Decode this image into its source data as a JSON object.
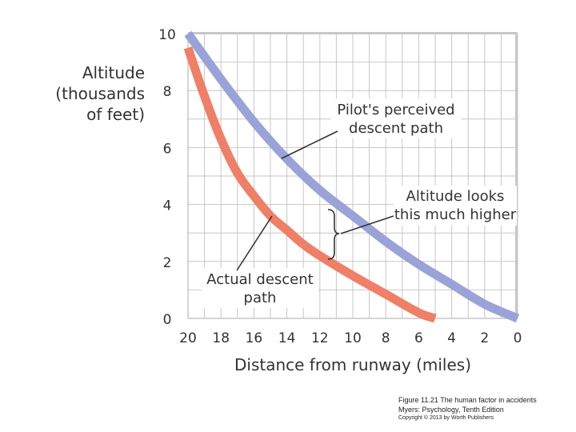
{
  "chart_data": {
    "type": "line",
    "title": "",
    "xlabel": "Distance from runway (miles)",
    "ylabel": [
      "Altitude",
      "(thousands",
      "of feet)"
    ],
    "xlim": [
      20,
      0
    ],
    "ylim": [
      0,
      10
    ],
    "x_ticks": [
      "20",
      "18",
      "16",
      "14",
      "12",
      "10",
      "8",
      "6",
      "4",
      "2",
      "0"
    ],
    "y_ticks": [
      "10",
      "8",
      "6",
      "4",
      "2",
      "0"
    ],
    "grid": true,
    "series": [
      {
        "name": "Pilot's perceived descent path",
        "color": "#9aa3d8",
        "x": [
          20,
          18,
          16,
          14,
          12,
          10,
          8,
          6,
          4,
          2,
          0
        ],
        "y": [
          10,
          8.4,
          6.9,
          5.6,
          4.5,
          3.6,
          2.7,
          1.9,
          1.2,
          0.5,
          0
        ]
      },
      {
        "name": "Actual descent path",
        "color": "#f07f67",
        "x": [
          20,
          19,
          18,
          17,
          16,
          15,
          14,
          13,
          12,
          10,
          8,
          6,
          5
        ],
        "y": [
          9.5,
          7.8,
          6.3,
          5.1,
          4.3,
          3.6,
          3.1,
          2.6,
          2.2,
          1.5,
          0.85,
          0.2,
          0
        ]
      }
    ],
    "annotations": {
      "perceived": [
        "Pilot's perceived",
        "descent path"
      ],
      "higher": [
        "Altitude looks",
        "this much higher"
      ],
      "actual": [
        "Actual descent",
        "path"
      ]
    }
  },
  "caption": {
    "line1": "Figure 11.21  The human factor in accidents",
    "line2": "Myers: Psychology, Tenth Edition",
    "line3": "Copyright © 2013 by Worth Publishers"
  }
}
